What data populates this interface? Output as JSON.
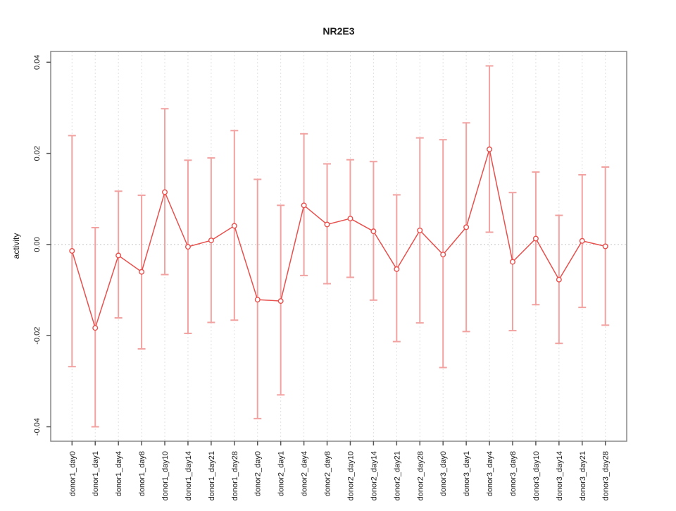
{
  "chart_data": {
    "type": "line",
    "title": "NR2E3",
    "xlabel": "",
    "ylabel": "activity",
    "legend": null,
    "grid": "vertical-dotted-per-category",
    "zero_line": true,
    "y_ticks": [
      -0.04,
      -0.02,
      0.0,
      0.02,
      0.04
    ],
    "ylim_padding_fraction": 0.04,
    "categories": [
      "donor1_day0",
      "donor1_day1",
      "donor1_day4",
      "donor1_day8",
      "donor1_day10",
      "donor1_day14",
      "donor1_day21",
      "donor1_day28",
      "donor2_day0",
      "donor2_day1",
      "donor2_day4",
      "donor2_day8",
      "donor2_day10",
      "donor2_day14",
      "donor2_day21",
      "donor2_day28",
      "donor3_day0",
      "donor3_day1",
      "donor3_day4",
      "donor3_day8",
      "donor3_day10",
      "donor3_day14",
      "donor3_day21",
      "donor3_day28"
    ],
    "series": [
      {
        "name": "activity",
        "marker": "open-circle",
        "values": [
          -0.0014,
          -0.0183,
          -0.0024,
          -0.006,
          0.0115,
          -0.0005,
          0.0009,
          0.0041,
          -0.0121,
          -0.0124,
          0.0086,
          0.0044,
          0.0057,
          0.0029,
          -0.0054,
          0.0031,
          -0.0022,
          0.0038,
          0.0209,
          -0.0038,
          0.0013,
          -0.0077,
          0.0008,
          -0.0004
        ],
        "upper": [
          0.0239,
          0.0037,
          0.0117,
          0.0108,
          0.0298,
          0.0185,
          0.019,
          0.025,
          0.0143,
          0.0086,
          0.0243,
          0.0177,
          0.0186,
          0.0182,
          0.0109,
          0.0234,
          0.023,
          0.0267,
          0.0392,
          0.0114,
          0.0159,
          0.0064,
          0.0153,
          0.017
        ],
        "lower": [
          -0.0268,
          -0.04,
          -0.0161,
          -0.0229,
          -0.0066,
          -0.0195,
          -0.0171,
          -0.0166,
          -0.0382,
          -0.033,
          -0.0068,
          -0.0086,
          -0.0072,
          -0.0122,
          -0.0213,
          -0.0172,
          -0.027,
          -0.0191,
          0.0027,
          -0.0189,
          -0.0132,
          -0.0217,
          -0.0138,
          -0.0177
        ]
      }
    ],
    "colors": {
      "line": "#e6504d",
      "marker_stroke": "#e6504d",
      "error_bar": "#f2a3a1",
      "axis_box": "#888888",
      "tick": "#555555",
      "grid": "#e0e0e0",
      "zero_line": "#c8c8c8",
      "text": "#1a1a1a"
    }
  }
}
